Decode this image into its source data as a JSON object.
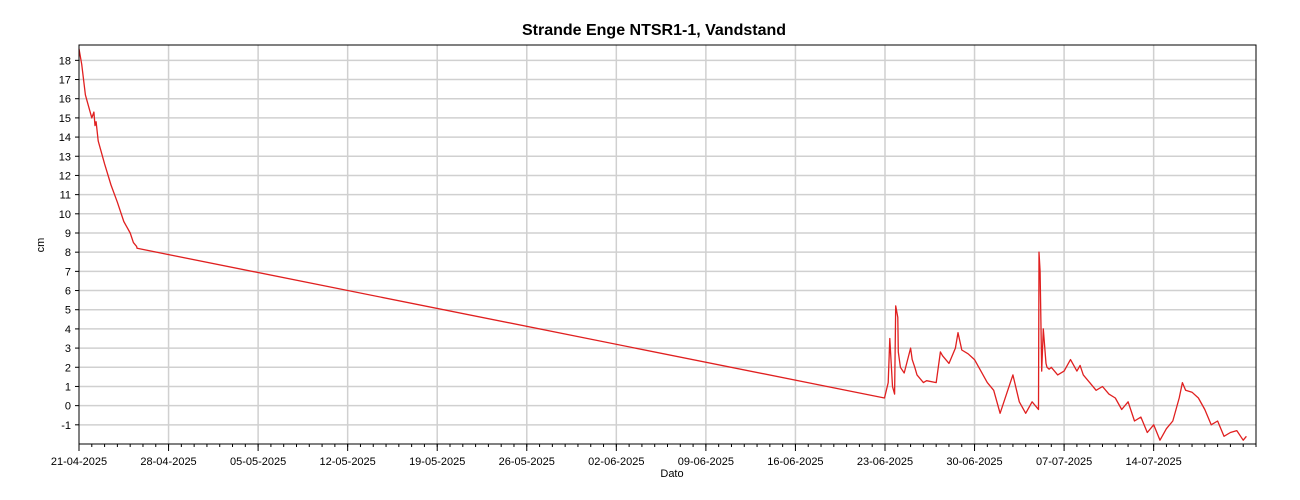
{
  "chart_data": {
    "type": "line",
    "title": "Strande Enge NTSR1-1, Vandstand",
    "xlabel": "Dato",
    "ylabel": "cm",
    "grid": true,
    "legend": "none",
    "x_range": [
      "2025-04-21",
      "2025-07-22"
    ],
    "ylim": [
      -2.0,
      18.8
    ],
    "y_ticks": [
      -1,
      0,
      1,
      2,
      3,
      4,
      5,
      6,
      7,
      8,
      9,
      10,
      11,
      12,
      13,
      14,
      15,
      16,
      17,
      18
    ],
    "x_ticks": [
      "21-04-2025",
      "28-04-2025",
      "05-05-2025",
      "12-05-2025",
      "19-05-2025",
      "26-05-2025",
      "02-06-2025",
      "09-06-2025",
      "16-06-2025",
      "23-06-2025",
      "30-06-2025",
      "07-07-2025",
      "14-07-2025"
    ],
    "series": [
      {
        "color": "#e02020",
        "x": [
          "2025-04-21 00:00",
          "2025-04-21 05:00",
          "2025-04-21 12:00",
          "2025-04-21 18:00",
          "2025-04-22 00:00",
          "2025-04-22 04:00",
          "2025-04-22 06:00",
          "2025-04-22 08:00",
          "2025-04-22 12:00",
          "2025-04-23 00:00",
          "2025-04-23 12:00",
          "2025-04-24 00:00",
          "2025-04-24 12:00",
          "2025-04-25 00:00",
          "2025-04-25 06:00",
          "2025-04-25 12:00",
          "2025-04-25 13:00",
          "2025-06-22 23:00",
          "2025-06-23 06:00",
          "2025-06-23 09:00",
          "2025-06-23 14:00",
          "2025-06-23 18:00",
          "2025-06-23 20:00",
          "2025-06-24 00:00",
          "2025-06-24 01:00",
          "2025-06-24 05:00",
          "2025-06-24 12:00",
          "2025-06-25 00:00",
          "2025-06-25 03:00",
          "2025-06-25 08:00",
          "2025-06-25 12:00",
          "2025-06-26 00:00",
          "2025-06-26 06:00",
          "2025-06-27 00:00",
          "2025-06-27 08:00",
          "2025-06-27 12:00",
          "2025-06-28 00:00",
          "2025-06-28 12:00",
          "2025-06-28 17:00",
          "2025-06-29 00:00",
          "2025-06-29 12:00",
          "2025-06-30 00:00",
          "2025-06-30 12:00",
          "2025-07-01 00:00",
          "2025-07-01 12:00",
          "2025-07-02 00:00",
          "2025-07-02 12:00",
          "2025-07-03 00:00",
          "2025-07-03 12:00",
          "2025-07-04 00:00",
          "2025-07-04 12:00",
          "2025-07-05 00:00",
          "2025-07-05 01:00",
          "2025-07-05 03:00",
          "2025-07-05 06:00",
          "2025-07-05 09:00",
          "2025-07-05 14:00",
          "2025-07-05 16:00",
          "2025-07-05 20:00",
          "2025-07-06 00:00",
          "2025-07-06 12:00",
          "2025-07-07 00:00",
          "2025-07-07 12:00",
          "2025-07-08 00:00",
          "2025-07-08 06:00",
          "2025-07-08 12:00",
          "2025-07-09 00:00",
          "2025-07-09 12:00",
          "2025-07-10 00:00",
          "2025-07-10 12:00",
          "2025-07-11 00:00",
          "2025-07-11 12:00",
          "2025-07-12 00:00",
          "2025-07-12 12:00",
          "2025-07-13 00:00",
          "2025-07-13 12:00",
          "2025-07-14 00:00",
          "2025-07-14 12:00",
          "2025-07-15 00:00",
          "2025-07-15 12:00",
          "2025-07-16 00:00",
          "2025-07-16 06:00",
          "2025-07-16 12:00",
          "2025-07-17 00:00",
          "2025-07-17 12:00",
          "2025-07-18 00:00",
          "2025-07-18 12:00",
          "2025-07-19 00:00",
          "2025-07-19 12:00",
          "2025-07-20 00:00",
          "2025-07-20 12:00",
          "2025-07-21 00:00",
          "2025-07-21 06:00"
        ],
        "y": [
          18.6,
          17.8,
          16.2,
          15.6,
          15.0,
          15.3,
          14.6,
          14.8,
          13.8,
          12.6,
          11.5,
          10.6,
          9.6,
          9.0,
          8.5,
          8.3,
          8.2,
          0.4,
          1.2,
          3.5,
          1.0,
          0.6,
          5.2,
          4.6,
          2.8,
          2.0,
          1.7,
          3.0,
          2.4,
          2.0,
          1.6,
          1.2,
          1.3,
          1.2,
          2.8,
          2.6,
          2.2,
          3.0,
          3.8,
          2.9,
          2.7,
          2.4,
          1.8,
          1.2,
          0.8,
          -0.4,
          0.6,
          1.6,
          0.2,
          -0.4,
          0.2,
          -0.2,
          8.0,
          7.0,
          1.8,
          4.0,
          2.2,
          2.0,
          1.9,
          2.0,
          1.6,
          1.8,
          2.4,
          1.8,
          2.1,
          1.6,
          1.2,
          0.8,
          1.0,
          0.6,
          0.4,
          -0.2,
          0.2,
          -0.8,
          -0.6,
          -1.4,
          -1.0,
          -1.8,
          -1.2,
          -0.8,
          0.4,
          1.2,
          0.8,
          0.7,
          0.4,
          -0.2,
          -1.0,
          -0.8,
          -1.6,
          -1.4,
          -1.3,
          -1.8,
          -1.6
        ]
      }
    ]
  }
}
